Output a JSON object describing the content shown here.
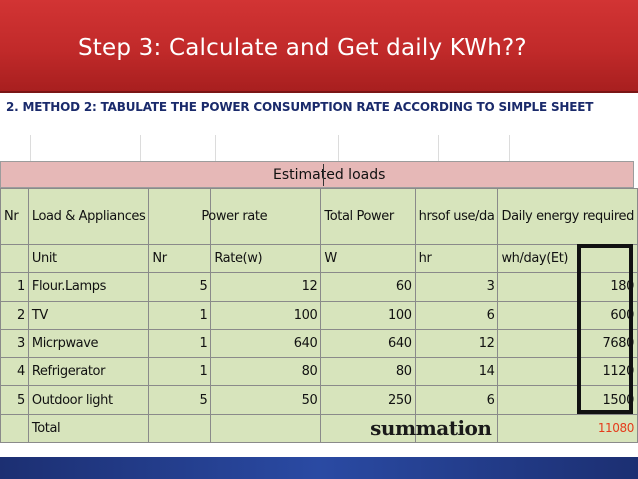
{
  "slide": {
    "title": "Step 3: Calculate and Get daily KWh??",
    "subtitle": "2. METHOD 2: TABULATE THE POWER CONSUMPTION RATE ACCORDING  TO SIMPLE  SHEET"
  },
  "sheet": {
    "banner": "Estimated loads",
    "headers": {
      "nr": "Nr",
      "load": "Load & Appliances",
      "power_rate": "Power rate",
      "total_power": "Total Power",
      "hrs": "hrsof use/da",
      "daily": "Daily energy required"
    },
    "units": {
      "load": "Unit",
      "nr": "Nr",
      "rate": "Rate(w)",
      "total": "W",
      "hrs": "hr",
      "daily": "wh/day(Et)"
    },
    "rows": [
      {
        "nr": "1",
        "name": "Flour.Lamps",
        "qty": "5",
        "rate": "12",
        "total": "60",
        "hrs": "3",
        "daily": "180"
      },
      {
        "nr": "2",
        "name": "TV",
        "qty": "1",
        "rate": "100",
        "total": "100",
        "hrs": "6",
        "daily": "600"
      },
      {
        "nr": "3",
        "name": "Micrpwave",
        "qty": "1",
        "rate": "640",
        "total": "640",
        "hrs": "12",
        "daily": "7680"
      },
      {
        "nr": "4",
        "name": "Refrigerator",
        "qty": "1",
        "rate": "80",
        "total": "80",
        "hrs": "14",
        "daily": "1120"
      },
      {
        "nr": "5",
        "name": "Outdoor light",
        "qty": "5",
        "rate": "50",
        "total": "250",
        "hrs": "6",
        "daily": "1500"
      }
    ],
    "total_label": "Total",
    "summation_label": "summation",
    "total_value": "11080"
  },
  "colors": {
    "title_bar": "#c12a2a",
    "banner": "#e6b8b7",
    "sheet_fill": "#d7e4bc",
    "total_value": "#e53b1b",
    "subtitle": "#1a2a6b",
    "bottom_bar": "#1c2f72"
  }
}
